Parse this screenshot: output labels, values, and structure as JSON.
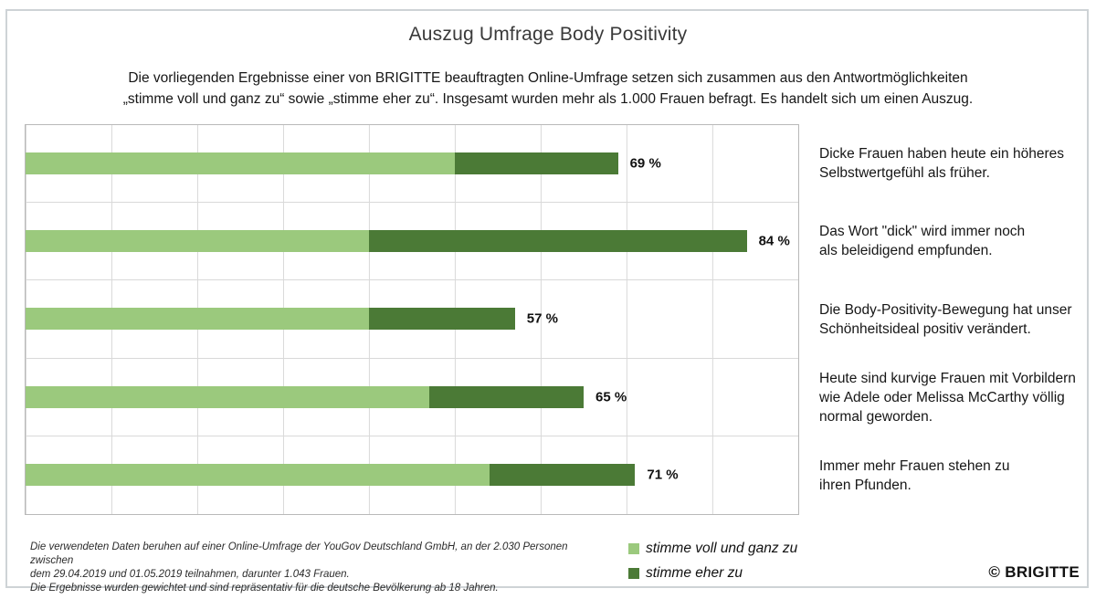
{
  "title": "Auszug Umfrage Body Positivity",
  "subtitle": {
    "lines": [
      "Die vorliegenden Ergebnisse einer von BRIGITTE beauftragten Online-Umfrage setzen sich zusammen aus den Antwortmöglichkeiten",
      "„stimme voll und ganz zu“ sowie „stimme eher zu“. Insgesamt wurden mehr als 1.000 Frauen befragt. Es handelt sich um einen Auszug."
    ]
  },
  "chart_data": {
    "type": "bar",
    "stacked": true,
    "orientation": "horizontal",
    "grid": true,
    "gridline_step": 10,
    "xlim": [
      0,
      90
    ],
    "legend_position": "bottom-center",
    "categories": [
      "Dicke Frauen haben heute ein höheres Selbstwertgefühl als früher.",
      "Das Wort \"dick\" wird immer noch als beleidigend empfunden.",
      "Die Body-Positivity-Bewegung hat unser Schönheitsideal positiv verändert.",
      "Heute sind kurvige Frauen mit Vorbildern wie Adele oder Melissa McCarthy völlig normal geworden.",
      "Immer mehr Frauen stehen zu ihren Pfunden."
    ],
    "category_display_lines": [
      [
        "Dicke Frauen haben heute ein höheres",
        "Selbstwertgefühl als früher."
      ],
      [
        "Das Wort \"dick\" wird immer noch",
        "als beleidigend empfunden."
      ],
      [
        "Die Body-Positivity-Bewegung hat unser",
        "Schönheitsideal positiv verändert."
      ],
      [
        "Heute sind kurvige Frauen mit Vorbildern",
        "wie Adele oder Melissa McCarthy völlig",
        "normal geworden."
      ],
      [
        "Immer mehr Frauen stehen zu",
        "ihren Pfunden."
      ]
    ],
    "series": [
      {
        "name": "stimme voll und ganz zu",
        "color": "#9bc97d",
        "values": [
          50,
          40,
          40,
          47,
          54
        ]
      },
      {
        "name": "stimme eher zu",
        "color": "#4b7a36",
        "values": [
          19,
          44,
          17,
          18,
          17
        ]
      }
    ],
    "totals": [
      69,
      84,
      57,
      65,
      71
    ],
    "total_labels": [
      "69 %",
      "84 %",
      "57 %",
      "65 %",
      "71 %"
    ]
  },
  "legend": {
    "items": [
      {
        "label": "stimme voll und ganz zu",
        "color": "#9bc97d"
      },
      {
        "label": "stimme eher zu",
        "color": "#4b7a36"
      }
    ]
  },
  "footnote": {
    "lines": [
      "Die verwendeten Daten beruhen auf einer Online-Umfrage der YouGov Deutschland GmbH, an der 2.030 Personen zwischen",
      "dem 29.04.2019 und 01.05.2019 teilnahmen, darunter 1.043 Frauen.",
      "Die Ergebnisse wurden gewichtet und sind repräsentativ für die deutsche Bevölkerung ab 18 Jahren."
    ]
  },
  "copyright": "© BRIGITTE"
}
